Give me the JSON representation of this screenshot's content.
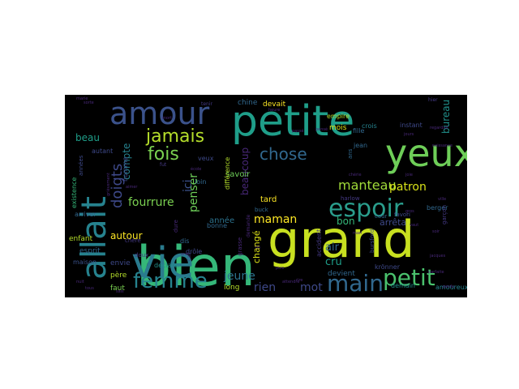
{
  "word_cloud": {
    "background": "#000000",
    "palette": [
      "#fde725",
      "#b5de2b",
      "#6ece58",
      "#35b779",
      "#1f9e89",
      "#26828e",
      "#31688e",
      "#3e4989",
      "#482878",
      "#440154"
    ],
    "words": [
      {
        "text": "bien",
        "color": "#35b779"
      },
      {
        "text": "grand",
        "color": "#c8e020"
      },
      {
        "text": "petite",
        "color": "#1f9e89"
      },
      {
        "text": "yeux",
        "color": "#6ece58"
      },
      {
        "text": "vie",
        "color": "#2a7b8e"
      },
      {
        "text": "allait",
        "color": "#26828e"
      },
      {
        "text": "amour",
        "color": "#3b528b"
      },
      {
        "text": "espoir",
        "color": "#2a9d8c"
      },
      {
        "text": "main",
        "color": "#31688e"
      },
      {
        "text": "femme",
        "color": "#26828e"
      },
      {
        "text": "petit",
        "color": "#4ac16d"
      },
      {
        "text": "jamais",
        "color": "#b5de2b"
      },
      {
        "text": "fois",
        "color": "#7ad151"
      },
      {
        "text": "chose",
        "color": "#31688e"
      },
      {
        "text": "doigts",
        "color": "#3e4989"
      },
      {
        "text": "manteau",
        "color": "#a0da39"
      },
      {
        "text": "patron",
        "color": "#d8e219"
      },
      {
        "text": "fourrure",
        "color": "#7ad151"
      },
      {
        "text": "maman",
        "color": "#fde725"
      },
      {
        "text": "jeune",
        "color": "#2c728e"
      },
      {
        "text": "rien",
        "color": "#3e4989"
      },
      {
        "text": "mot",
        "color": "#3e4989"
      },
      {
        "text": "penser",
        "color": "#6ece58"
      },
      {
        "text": "ici",
        "color": "#3b528b"
      },
      {
        "text": "beaucoup",
        "color": "#482878"
      },
      {
        "text": "autour",
        "color": "#fde725"
      },
      {
        "text": "bon",
        "color": "#35b779"
      },
      {
        "text": "arrêta",
        "color": "#3e4989"
      },
      {
        "text": "compte",
        "color": "#26828e"
      },
      {
        "text": "beau",
        "color": "#1f9e89"
      },
      {
        "text": "bureau",
        "color": "#21918c"
      },
      {
        "text": "air",
        "color": "#31688e"
      },
      {
        "text": "cru",
        "color": "#1f9e89"
      },
      {
        "text": "changé",
        "color": "#dde318"
      },
      {
        "text": "année",
        "color": "#2c728e"
      },
      {
        "text": "tard",
        "color": "#fde725"
      },
      {
        "text": "savoir",
        "color": "#6ece58"
      },
      {
        "text": "devait",
        "color": "#fde725"
      },
      {
        "text": "chine",
        "color": "#31688e"
      },
      {
        "text": "mois",
        "color": "#dde318"
      },
      {
        "text": "fille",
        "color": "#31688e"
      },
      {
        "text": "jean",
        "color": "#31688e"
      },
      {
        "text": "empire",
        "color": "#b5de2b"
      },
      {
        "text": "devient",
        "color": "#31688e"
      },
      {
        "text": "demain",
        "color": "#21918c"
      },
      {
        "text": "amoureux",
        "color": "#26828e"
      },
      {
        "text": "long",
        "color": "#b5de2b"
      },
      {
        "text": "faut",
        "color": "#7ad151"
      },
      {
        "text": "père",
        "color": "#b5de2b"
      },
      {
        "text": "envie",
        "color": "#3e4989"
      },
      {
        "text": "esprit",
        "color": "#31688e"
      },
      {
        "text": "enfant",
        "color": "#b5de2b"
      },
      {
        "text": "maison",
        "color": "#3b528b"
      },
      {
        "text": "arriver",
        "color": "#31688e"
      },
      {
        "text": "autant",
        "color": "#3e4989"
      },
      {
        "text": "homme",
        "color": "#3e4989"
      },
      {
        "text": "existence",
        "color": "#35b779"
      },
      {
        "text": "années",
        "color": "#3e4989"
      },
      {
        "text": "crois",
        "color": "#26828e"
      },
      {
        "text": "instant",
        "color": "#3e4989"
      },
      {
        "text": "ans",
        "color": "#31688e"
      },
      {
        "text": "cour",
        "color": "#31688e"
      },
      {
        "text": "favori",
        "color": "#3e4989"
      },
      {
        "text": "berger",
        "color": "#31688e"
      },
      {
        "text": "garçon",
        "color": "#443983"
      },
      {
        "text": "krönner",
        "color": "#3e4989"
      },
      {
        "text": "bursford",
        "color": "#3e4989"
      },
      {
        "text": "accident",
        "color": "#443983"
      },
      {
        "text": "buck",
        "color": "#31688e"
      },
      {
        "text": "drôle",
        "color": "#3e4989"
      },
      {
        "text": "dis",
        "color": "#31688e"
      },
      {
        "text": "bonne",
        "color": "#31688e"
      },
      {
        "text": "chère",
        "color": "#443983"
      },
      {
        "text": "declarer",
        "color": "#21918c"
      },
      {
        "text": "doux",
        "color": "#443983"
      },
      {
        "text": "différence",
        "color": "#b5de2b"
      },
      {
        "text": "loin",
        "color": "#31688e"
      },
      {
        "text": "veux",
        "color": "#3e4989"
      },
      {
        "text": "fut",
        "color": "#443983"
      },
      {
        "text": "grasse",
        "color": "#482878"
      },
      {
        "text": "dure",
        "color": "#482878"
      },
      {
        "text": "tenir",
        "color": "#443983"
      },
      {
        "text": "harlow",
        "color": "#443983"
      },
      {
        "text": "cas",
        "color": "#443983"
      },
      {
        "text": "demande",
        "color": "#482878"
      },
      {
        "text": "grièvement",
        "color": "#482878"
      },
      {
        "text": "hier",
        "color": "#443983"
      },
      {
        "text": "jours",
        "color": "#482878"
      },
      {
        "text": "gros",
        "color": "#482878"
      },
      {
        "text": "vaut",
        "color": "#482878"
      },
      {
        "text": "parfaite",
        "color": "#482878"
      },
      {
        "text": "perdu",
        "color": "#482878"
      },
      {
        "text": "naissance",
        "color": "#482878"
      },
      {
        "text": "regardait",
        "color": "#482878"
      },
      {
        "text": "sorte",
        "color": "#482878"
      },
      {
        "text": "aimer",
        "color": "#482878"
      },
      {
        "text": "vrai",
        "color": "#482878"
      },
      {
        "text": "heure",
        "color": "#482878"
      },
      {
        "text": "attendre",
        "color": "#482878"
      },
      {
        "text": "puis",
        "color": "#482878"
      },
      {
        "text": "jacques",
        "color": "#482878"
      },
      {
        "text": "tous",
        "color": "#482878"
      },
      {
        "text": "marie",
        "color": "#482878"
      },
      {
        "text": "sais",
        "color": "#482878"
      },
      {
        "text": "chérie",
        "color": "#482878"
      },
      {
        "text": "passé",
        "color": "#482878"
      },
      {
        "text": "pensé",
        "color": "#482878"
      },
      {
        "text": "soir",
        "color": "#482878"
      },
      {
        "text": "mort",
        "color": "#482878"
      },
      {
        "text": "joie",
        "color": "#482878"
      },
      {
        "text": "rire",
        "color": "#482878"
      },
      {
        "text": "école",
        "color": "#482878"
      },
      {
        "text": "mari",
        "color": "#482878"
      },
      {
        "text": "fin",
        "color": "#482878"
      },
      {
        "text": "ville",
        "color": "#482878"
      },
      {
        "text": "nuit",
        "color": "#482878"
      }
    ]
  }
}
